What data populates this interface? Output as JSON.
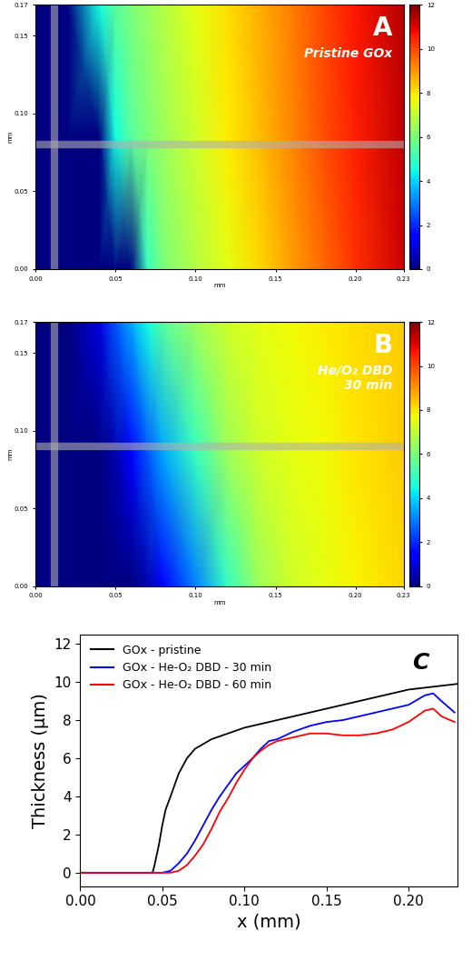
{
  "chart_data": [
    {
      "type": "heatmap",
      "panel": "A",
      "annotation": "Pristine GOx",
      "xlabel": "mm",
      "ylabel": "mm",
      "x": [
        0,
        0.02,
        0.04,
        0.05,
        0.06,
        0.07,
        0.08,
        0.1,
        0.12,
        0.14,
        0.16,
        0.18,
        0.2,
        0.23
      ],
      "y": [
        0,
        0.085,
        0.17
      ],
      "cells": [
        [
          0,
          0,
          0,
          0,
          0,
          5,
          6,
          6.8,
          7.5,
          8.2,
          8.9,
          9.6,
          10.3,
          11.2
        ],
        [
          0,
          0,
          0,
          4.5,
          5.5,
          6,
          6.5,
          7.2,
          7.9,
          8.5,
          9.2,
          9.9,
          10.5,
          11.3
        ],
        [
          0,
          0,
          4.5,
          5.5,
          6,
          6.4,
          6.8,
          7.5,
          8.1,
          8.7,
          9.3,
          10,
          10.6,
          11.4
        ]
      ],
      "profile_x": 0.012,
      "profile_y": 0.08,
      "xlim": [
        0,
        0.23
      ],
      "xticks": [
        {
          "value": 0,
          "label": "0.00"
        },
        {
          "value": 0.05,
          "label": "0.05"
        },
        {
          "value": 0.1,
          "label": "0.10"
        },
        {
          "value": 0.15,
          "label": "0.15"
        },
        {
          "value": 0.2,
          "label": "0.20"
        },
        {
          "value": 0.23,
          "label": "0.23"
        }
      ],
      "ylim": [
        0,
        0.17
      ],
      "yticks": [
        {
          "value": 0,
          "label": "0.00"
        },
        {
          "value": 0.05,
          "label": "0.05"
        },
        {
          "value": 0.1,
          "label": "0.10"
        },
        {
          "value": 0.15,
          "label": "0.15"
        },
        {
          "value": 0.17,
          "label": "0.17"
        }
      ],
      "colorbar_range": [
        0,
        12
      ],
      "colorbar_ticks": [
        0,
        2,
        4,
        6,
        8,
        10,
        12
      ]
    },
    {
      "type": "heatmap",
      "panel": "B",
      "annotation": "He/O₂ DBD\n30 min",
      "xlabel": "mm",
      "ylabel": "mm",
      "x": [
        0,
        0.02,
        0.04,
        0.05,
        0.06,
        0.07,
        0.08,
        0.1,
        0.12,
        0.14,
        0.16,
        0.18,
        0.2,
        0.23
      ],
      "y": [
        0,
        0.085,
        0.17
      ],
      "cells": [
        [
          0,
          0,
          0,
          0,
          0,
          0.5,
          1.5,
          3,
          5,
          6.5,
          7.2,
          7.5,
          7.8,
          8.2
        ],
        [
          0,
          0,
          0,
          0.5,
          1.5,
          2.5,
          3.5,
          5,
          6.5,
          7.2,
          7.5,
          7.7,
          8,
          8.3
        ],
        [
          0,
          0,
          1,
          2.5,
          3.5,
          4.5,
          5.5,
          6.5,
          7.2,
          7.5,
          7.7,
          7.9,
          8.1,
          8.3
        ]
      ],
      "profile_x": 0.012,
      "profile_y": 0.09,
      "xlim": [
        0,
        0.23
      ],
      "xticks": [
        {
          "value": 0,
          "label": "0.00"
        },
        {
          "value": 0.05,
          "label": "0.05"
        },
        {
          "value": 0.1,
          "label": "0.10"
        },
        {
          "value": 0.15,
          "label": "0.15"
        },
        {
          "value": 0.2,
          "label": "0.20"
        },
        {
          "value": 0.23,
          "label": "0.23"
        }
      ],
      "ylim": [
        0,
        0.17
      ],
      "yticks": [
        {
          "value": 0,
          "label": "0.00"
        },
        {
          "value": 0.05,
          "label": "0.05"
        },
        {
          "value": 0.1,
          "label": "0.10"
        },
        {
          "value": 0.15,
          "label": "0.15"
        },
        {
          "value": 0.17,
          "label": "0.17"
        }
      ],
      "colorbar_range": [
        0,
        12
      ],
      "colorbar_ticks": [
        0,
        2,
        4,
        6,
        8,
        10,
        12
      ]
    },
    {
      "type": "line",
      "panel": "C",
      "xlabel": "x (mm)",
      "ylabel": "Thickness (μm)",
      "legend": "upper left",
      "xlim": [
        0,
        0.23
      ],
      "xticks": [
        {
          "value": 0,
          "label": "0.00"
        },
        {
          "value": 0.05,
          "label": "0.05"
        },
        {
          "value": 0.1,
          "label": "0.10"
        },
        {
          "value": 0.15,
          "label": "0.15"
        },
        {
          "value": 0.2,
          "label": "0.20"
        }
      ],
      "ylim": [
        -0.7,
        12.5
      ],
      "yticks": [
        0,
        2,
        4,
        6,
        8,
        10,
        12
      ],
      "series": [
        {
          "name": "GOx - pristine",
          "color": "#000000",
          "x": [
            0,
            0.044,
            0.045,
            0.048,
            0.05,
            0.052,
            0.055,
            0.06,
            0.065,
            0.07,
            0.08,
            0.09,
            0.1,
            0.12,
            0.14,
            0.16,
            0.18,
            0.2,
            0.23
          ],
          "values": [
            0,
            0,
            0.3,
            1.5,
            2.5,
            3.3,
            4.0,
            5.2,
            6.0,
            6.5,
            7.0,
            7.3,
            7.6,
            8.0,
            8.4,
            8.8,
            9.2,
            9.6,
            9.9
          ]
        },
        {
          "name": "GOx - He-O₂ DBD - 30 min",
          "color": "#0000ff",
          "x": [
            0,
            0.05,
            0.055,
            0.06,
            0.065,
            0.07,
            0.075,
            0.08,
            0.085,
            0.09,
            0.095,
            0.1,
            0.105,
            0.11,
            0.115,
            0.12,
            0.13,
            0.14,
            0.15,
            0.16,
            0.17,
            0.18,
            0.19,
            0.2,
            0.21,
            0.215,
            0.22,
            0.228
          ],
          "values": [
            0,
            0,
            0.1,
            0.5,
            1.0,
            1.7,
            2.5,
            3.3,
            4.0,
            4.6,
            5.2,
            5.6,
            6.0,
            6.5,
            6.9,
            7.0,
            7.4,
            7.7,
            7.9,
            8.0,
            8.2,
            8.4,
            8.6,
            8.8,
            9.3,
            9.4,
            9.0,
            8.4
          ]
        },
        {
          "name": "GOx - He-O₂ DBD - 60 min",
          "color": "#ff0000",
          "x": [
            0,
            0.055,
            0.06,
            0.065,
            0.07,
            0.075,
            0.08,
            0.085,
            0.09,
            0.095,
            0.1,
            0.105,
            0.11,
            0.115,
            0.12,
            0.13,
            0.14,
            0.15,
            0.16,
            0.17,
            0.18,
            0.19,
            0.2,
            0.21,
            0.215,
            0.22,
            0.228
          ],
          "values": [
            0,
            0,
            0.1,
            0.4,
            0.9,
            1.5,
            2.3,
            3.2,
            3.9,
            4.7,
            5.4,
            6.0,
            6.4,
            6.7,
            6.9,
            7.1,
            7.3,
            7.3,
            7.2,
            7.2,
            7.3,
            7.5,
            7.9,
            8.5,
            8.6,
            8.2,
            7.9
          ]
        }
      ]
    }
  ]
}
